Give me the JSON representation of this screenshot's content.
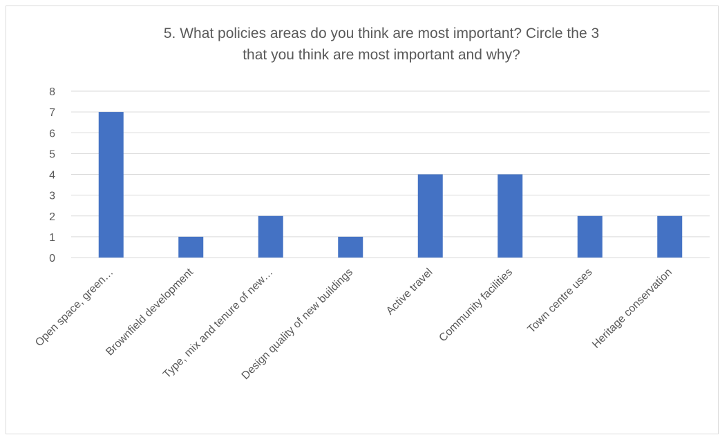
{
  "chart_data": {
    "type": "bar",
    "title_lines": [
      "5. What policies areas do you think are most important? Circle the 3",
      "that you think are most important and why?"
    ],
    "categories": [
      "Open space, green…",
      "Brownfield development",
      "Type, mix and tenure of new…",
      "Design quality of new buildings",
      "Active travel",
      "Community facilities",
      "Town centre uses",
      "Heritage conservation"
    ],
    "values": [
      7,
      1,
      2,
      1,
      4,
      4,
      2,
      2
    ],
    "ylim": [
      0,
      8
    ],
    "yticks": [
      0,
      1,
      2,
      3,
      4,
      5,
      6,
      7,
      8
    ],
    "grid": true,
    "legend": "none",
    "bar_color": "#4472c4",
    "xlabel": "",
    "ylabel": ""
  }
}
